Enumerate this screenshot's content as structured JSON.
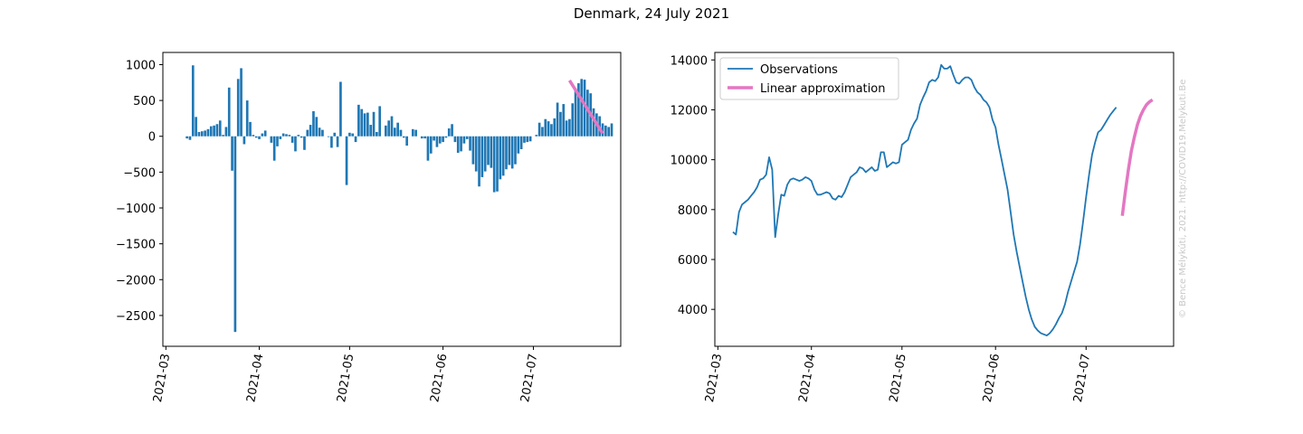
{
  "title": "Denmark, 24 July 2021",
  "credit": "© Bence Mélykúti, 2021. http://COVID19.Melykuti.Be",
  "colors": {
    "bar": "#1f77b4",
    "line": "#1f77b4",
    "approx": "#e377c2"
  },
  "chart_data": [
    {
      "type": "bar",
      "x_type": "date",
      "xlim": [
        "2021-02-28",
        "2021-07-30"
      ],
      "ylim": [
        -2930,
        1170
      ],
      "xticks": [
        "2021-03",
        "2021-04",
        "2021-05",
        "2021-06",
        "2021-07"
      ],
      "xtick_dates": [
        "2021-03-01",
        "2021-04-01",
        "2021-05-01",
        "2021-06-01",
        "2021-07-01"
      ],
      "yticks": [
        1000,
        500,
        0,
        -500,
        -1000,
        -1500,
        -2000,
        -2500
      ],
      "ytick_labels": [
        "1000",
        "500",
        "0",
        "−500",
        "−1000",
        "−1500",
        "−2000",
        "−2500"
      ],
      "start_date": "2021-03-08",
      "values": [
        -30,
        -50,
        990,
        270,
        60,
        70,
        80,
        100,
        140,
        150,
        170,
        220,
        20,
        130,
        680,
        -480,
        -2730,
        800,
        950,
        -110,
        500,
        200,
        20,
        -20,
        -40,
        40,
        80,
        0,
        -90,
        -340,
        -140,
        -40,
        40,
        30,
        20,
        -90,
        -210,
        20,
        -20,
        -190,
        90,
        160,
        350,
        270,
        120,
        90,
        0,
        -10,
        -160,
        50,
        -150,
        760,
        0,
        -680,
        50,
        40,
        -80,
        440,
        380,
        320,
        330,
        160,
        340,
        60,
        420,
        0,
        150,
        220,
        280,
        120,
        190,
        90,
        -20,
        -130,
        0,
        100,
        90,
        0,
        -30,
        -30,
        -340,
        -240,
        -60,
        -150,
        -100,
        -80,
        -20,
        110,
        170,
        -80,
        -230,
        -210,
        -100,
        -40,
        -200,
        -390,
        -490,
        -700,
        -570,
        -490,
        -400,
        -440,
        -780,
        -770,
        -600,
        -550,
        -460,
        -400,
        -450,
        -390,
        -240,
        -180,
        -90,
        -80,
        -70,
        0,
        20,
        190,
        130,
        240,
        210,
        170,
        250,
        470,
        340,
        450,
        220,
        240,
        460,
        670,
        740,
        800,
        790,
        650,
        600,
        390,
        320,
        280,
        180,
        150,
        130,
        180
      ],
      "approximation": {
        "name": "",
        "x": [
          "2021-07-13",
          "2021-07-24"
        ],
        "y": [
          780,
          40
        ]
      }
    },
    {
      "type": "line",
      "x_type": "date",
      "xlim": [
        "2021-02-28",
        "2021-07-30"
      ],
      "ylim": [
        2520,
        14300
      ],
      "xticks": [
        "2021-03",
        "2021-04",
        "2021-05",
        "2021-06",
        "2021-07"
      ],
      "xtick_dates": [
        "2021-03-01",
        "2021-04-01",
        "2021-05-01",
        "2021-06-01",
        "2021-07-01"
      ],
      "yticks": [
        14000,
        12000,
        10000,
        8000,
        6000,
        4000
      ],
      "ytick_labels": [
        "14000",
        "12000",
        "10000",
        "8000",
        "6000",
        "4000"
      ],
      "legend": "top-left",
      "series": [
        {
          "name": "Observations",
          "start_date": "2021-03-06",
          "y": [
            7100,
            7000,
            7900,
            8200,
            8300,
            8400,
            8550,
            8700,
            8900,
            9200,
            9250,
            9400,
            10100,
            9600,
            6900,
            7800,
            8600,
            8550,
            9000,
            9200,
            9250,
            9200,
            9150,
            9200,
            9300,
            9250,
            9150,
            8800,
            8600,
            8600,
            8650,
            8700,
            8650,
            8450,
            8400,
            8550,
            8500,
            8700,
            9000,
            9300,
            9400,
            9500,
            9700,
            9650,
            9500,
            9600,
            9700,
            9550,
            9600,
            10300,
            10300,
            9700,
            9800,
            9900,
            9850,
            9900,
            10600,
            10700,
            10800,
            11200,
            11450,
            11650,
            12200,
            12500,
            12750,
            13100,
            13200,
            13150,
            13300,
            13800,
            13650,
            13650,
            13750,
            13400,
            13100,
            13050,
            13200,
            13300,
            13300,
            13200,
            12900,
            12700,
            12600,
            12400,
            12300,
            12100,
            11600,
            11300,
            10600,
            10000,
            9400,
            8800,
            7900,
            7000,
            6300,
            5700,
            5100,
            4500,
            4000,
            3600,
            3300,
            3150,
            3050,
            3000,
            2950,
            3050,
            3200,
            3400,
            3650,
            3850,
            4200,
            4700,
            5100,
            5500,
            5900,
            6600,
            7500,
            8500,
            9400,
            10200,
            10700,
            11100,
            11200,
            11400,
            11600,
            11800,
            11950,
            12100
          ]
        },
        {
          "name": "Linear approximation",
          "start_date": "2021-07-13",
          "y": [
            7750,
            8700,
            9600,
            10350,
            10900,
            11400,
            11750,
            12000,
            12200,
            12320,
            12400
          ]
        }
      ]
    }
  ]
}
